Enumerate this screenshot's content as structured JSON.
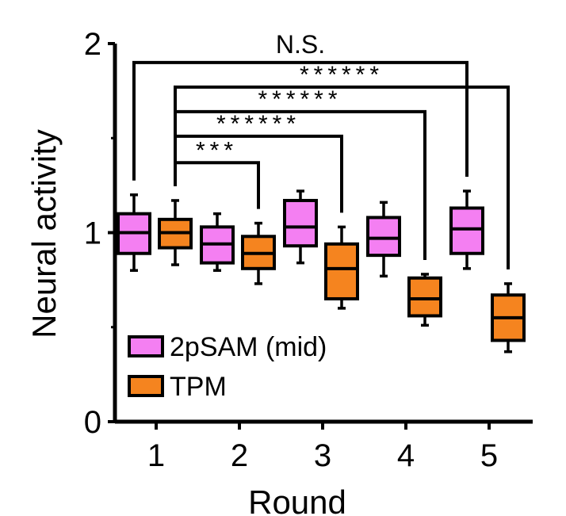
{
  "chart_data": {
    "type": "box",
    "xlabel": "Round",
    "ylabel": "Neural activity",
    "categories": [
      "1",
      "2",
      "3",
      "4",
      "5"
    ],
    "ylim": [
      0,
      2
    ],
    "yticks": [
      "0",
      "1",
      "2"
    ],
    "grid": false,
    "legend_position": "bottom-left",
    "series": [
      {
        "name": "2pSAM (mid)",
        "color": "#f47ff2",
        "boxes": [
          {
            "min": 0.8,
            "q1": 0.89,
            "median": 1.0,
            "q3": 1.1,
            "max": 1.2
          },
          {
            "min": 0.8,
            "q1": 0.84,
            "median": 0.94,
            "q3": 1.03,
            "max": 1.1
          },
          {
            "min": 0.84,
            "q1": 0.93,
            "median": 1.03,
            "q3": 1.17,
            "max": 1.22
          },
          {
            "min": 0.77,
            "q1": 0.88,
            "median": 0.97,
            "q3": 1.08,
            "max": 1.16
          },
          {
            "min": 0.81,
            "q1": 0.89,
            "median": 1.02,
            "q3": 1.13,
            "max": 1.22
          }
        ]
      },
      {
        "name": "TPM",
        "color": "#f5841f",
        "boxes": [
          {
            "min": 0.83,
            "q1": 0.92,
            "median": 1.0,
            "q3": 1.07,
            "max": 1.17
          },
          {
            "min": 0.73,
            "q1": 0.81,
            "median": 0.89,
            "q3": 0.98,
            "max": 1.05
          },
          {
            "min": 0.6,
            "q1": 0.65,
            "median": 0.81,
            "q3": 0.94,
            "max": 1.03
          },
          {
            "min": 0.51,
            "q1": 0.56,
            "median": 0.65,
            "q3": 0.76,
            "max": 0.78
          },
          {
            "min": 0.37,
            "q1": 0.43,
            "median": 0.55,
            "q3": 0.67,
            "max": 0.73
          }
        ]
      }
    ],
    "annotations": [
      {
        "label": "N.S.",
        "from": {
          "series": 0,
          "category": 0
        },
        "to": {
          "series": 0,
          "category": 4
        },
        "level": 1.9
      },
      {
        "label": "******",
        "from": {
          "series": 1,
          "category": 0
        },
        "to": {
          "series": 1,
          "category": 4
        },
        "level": 1.77
      },
      {
        "label": "******",
        "from": {
          "series": 1,
          "category": 0
        },
        "to": {
          "series": 1,
          "category": 3
        },
        "level": 1.64
      },
      {
        "label": "******",
        "from": {
          "series": 1,
          "category": 0
        },
        "to": {
          "series": 1,
          "category": 2
        },
        "level": 1.51
      },
      {
        "label": "***",
        "from": {
          "series": 1,
          "category": 0
        },
        "to": {
          "series": 1,
          "category": 1
        },
        "level": 1.37
      }
    ]
  }
}
